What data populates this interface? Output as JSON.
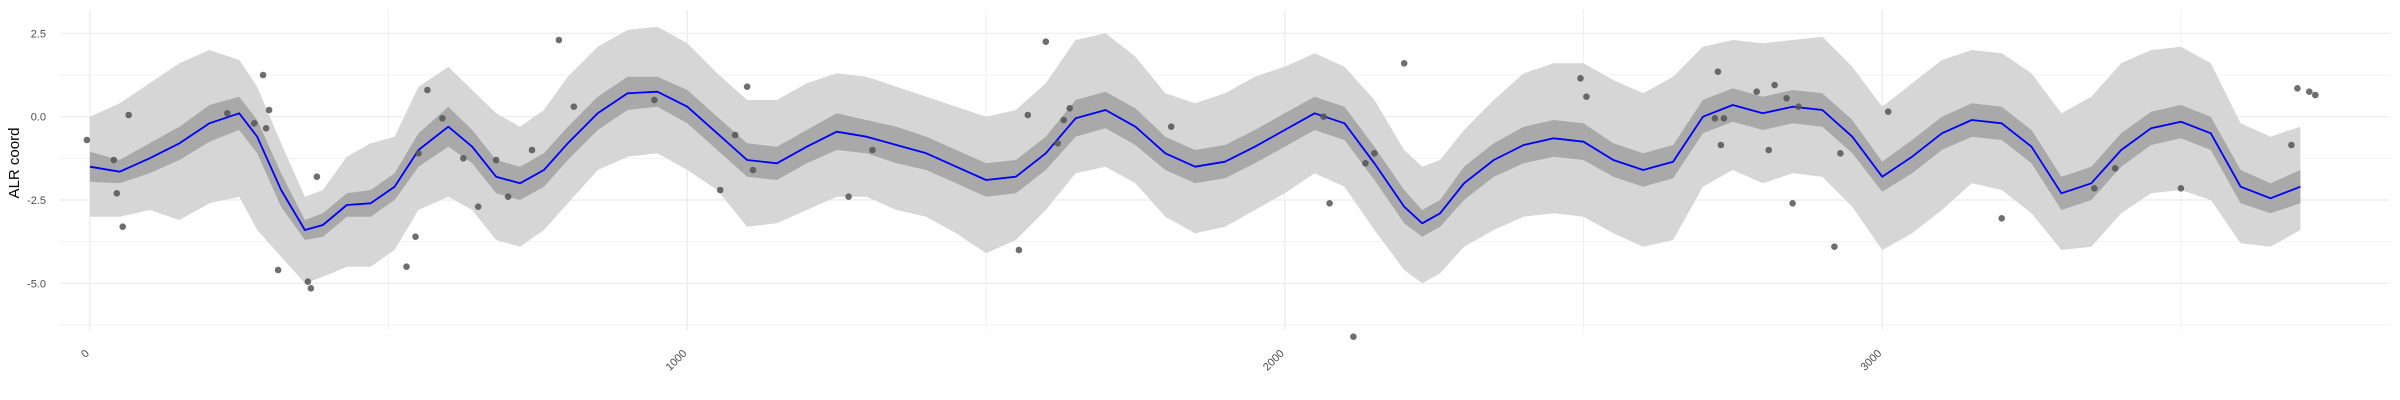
{
  "chart_data": {
    "type": "line",
    "xlabel": "",
    "ylabel": "ALR coord",
    "xlim": [
      -50,
      3850
    ],
    "ylim": [
      -6.4,
      3.2
    ],
    "x_ticks": [
      0,
      1000,
      2000,
      3000
    ],
    "y_ticks": [
      2.5,
      0.0,
      -2.5,
      -5.0
    ],
    "x_tick_labels": [
      "0",
      "1000",
      "2000",
      "3000"
    ],
    "y_tick_labels": [
      "2.5",
      "0.0",
      "-2.5",
      "-5.0"
    ],
    "grid": true,
    "legend": "none",
    "colors": {
      "line": "#0000ff",
      "inner_band": "#a9a9a9",
      "outer_band": "#d6d6d6",
      "points": "#555555",
      "grid": "#ebebeb",
      "tick_text": "#4d4d4d"
    },
    "fitted_line": {
      "x": [
        0,
        50,
        100,
        150,
        200,
        250,
        280,
        320,
        360,
        390,
        430,
        470,
        510,
        550,
        600,
        640,
        680,
        720,
        760,
        800,
        850,
        900,
        950,
        1000,
        1050,
        1100,
        1150,
        1200,
        1250,
        1300,
        1350,
        1400,
        1450,
        1500,
        1550,
        1600,
        1650,
        1700,
        1750,
        1800,
        1850,
        1900,
        1950,
        2000,
        2050,
        2100,
        2150,
        2200,
        2230,
        2260,
        2300,
        2350,
        2400,
        2450,
        2500,
        2550,
        2600,
        2650,
        2700,
        2750,
        2800,
        2850,
        2900,
        2950,
        3000,
        3050,
        3100,
        3150,
        3200,
        3250,
        3300,
        3350,
        3400,
        3450,
        3500,
        3550,
        3600,
        3650,
        3700
      ],
      "y": [
        -1.5,
        -1.65,
        -1.25,
        -0.8,
        -0.2,
        0.1,
        -0.6,
        -2.2,
        -3.4,
        -3.25,
        -2.65,
        -2.6,
        -2.1,
        -1.0,
        -0.3,
        -0.9,
        -1.8,
        -2.0,
        -1.6,
        -0.8,
        0.1,
        0.7,
        0.75,
        0.3,
        -0.5,
        -1.3,
        -1.4,
        -0.9,
        -0.45,
        -0.6,
        -0.85,
        -1.1,
        -1.5,
        -1.9,
        -1.8,
        -1.1,
        -0.05,
        0.2,
        -0.3,
        -1.1,
        -1.5,
        -1.35,
        -0.9,
        -0.4,
        0.1,
        -0.2,
        -1.4,
        -2.7,
        -3.2,
        -2.9,
        -2.0,
        -1.3,
        -0.85,
        -0.65,
        -0.75,
        -1.3,
        -1.6,
        -1.35,
        0.0,
        0.35,
        0.1,
        0.3,
        0.2,
        -0.6,
        -1.8,
        -1.2,
        -0.5,
        -0.1,
        -0.2,
        -0.9,
        -2.3,
        -2.0,
        -1.0,
        -0.35,
        -0.15,
        -0.5,
        -2.1,
        -2.45,
        -2.1
      ]
    },
    "inner_band": {
      "lower": [
        -1.95,
        -2.0,
        -1.7,
        -1.3,
        -0.75,
        -0.4,
        -1.1,
        -2.7,
        -3.7,
        -3.6,
        -3.0,
        -3.0,
        -2.5,
        -1.5,
        -0.9,
        -1.4,
        -2.3,
        -2.5,
        -2.1,
        -1.3,
        -0.4,
        0.2,
        0.3,
        -0.2,
        -1.0,
        -1.8,
        -1.9,
        -1.4,
        -1.0,
        -1.1,
        -1.4,
        -1.6,
        -2.0,
        -2.4,
        -2.3,
        -1.6,
        -0.6,
        -0.35,
        -0.85,
        -1.6,
        -2.0,
        -1.85,
        -1.4,
        -0.9,
        -0.4,
        -0.7,
        -1.9,
        -3.2,
        -3.6,
        -3.3,
        -2.5,
        -1.8,
        -1.4,
        -1.2,
        -1.3,
        -1.8,
        -2.1,
        -1.85,
        -0.5,
        -0.15,
        -0.4,
        -0.2,
        -0.3,
        -1.1,
        -2.25,
        -1.7,
        -1.0,
        -0.6,
        -0.7,
        -1.4,
        -2.8,
        -2.5,
        -1.5,
        -0.85,
        -0.65,
        -1.0,
        -2.6,
        -2.9,
        -2.6
      ],
      "upper": [
        -1.05,
        -1.3,
        -0.8,
        -0.3,
        0.35,
        0.6,
        -0.1,
        -1.7,
        -3.1,
        -2.9,
        -2.3,
        -2.2,
        -1.7,
        -0.5,
        0.3,
        -0.4,
        -1.3,
        -1.5,
        -1.1,
        -0.3,
        0.6,
        1.2,
        1.2,
        0.8,
        0.0,
        -0.8,
        -0.9,
        -0.4,
        0.1,
        -0.1,
        -0.3,
        -0.6,
        -1.0,
        -1.4,
        -1.3,
        -0.6,
        0.5,
        0.75,
        0.25,
        -0.6,
        -1.0,
        -0.85,
        -0.4,
        0.1,
        0.6,
        0.3,
        -0.9,
        -2.2,
        -2.8,
        -2.5,
        -1.5,
        -0.8,
        -0.3,
        -0.1,
        -0.2,
        -0.8,
        -1.1,
        -0.85,
        0.5,
        0.85,
        0.6,
        0.8,
        0.7,
        -0.1,
        -1.35,
        -0.7,
        0.0,
        0.4,
        0.3,
        -0.4,
        -1.8,
        -1.5,
        -0.5,
        0.15,
        0.35,
        0.0,
        -1.6,
        -2.0,
        -1.6
      ]
    },
    "outer_band": {
      "lower": [
        -3.0,
        -3.0,
        -2.8,
        -3.1,
        -2.6,
        -2.4,
        -3.4,
        -4.2,
        -5.0,
        -4.8,
        -4.5,
        -4.5,
        -4.0,
        -2.8,
        -2.4,
        -2.8,
        -3.7,
        -3.9,
        -3.4,
        -2.6,
        -1.6,
        -1.2,
        -1.1,
        -1.6,
        -2.2,
        -3.3,
        -3.2,
        -2.8,
        -2.4,
        -2.4,
        -2.8,
        -3.0,
        -3.5,
        -4.1,
        -3.7,
        -2.8,
        -1.7,
        -1.5,
        -2.0,
        -3.0,
        -3.5,
        -3.3,
        -2.8,
        -2.3,
        -1.7,
        -2.1,
        -3.4,
        -4.6,
        -5.0,
        -4.7,
        -3.9,
        -3.4,
        -3.0,
        -2.9,
        -3.0,
        -3.5,
        -3.9,
        -3.7,
        -2.1,
        -1.6,
        -2.0,
        -1.7,
        -1.8,
        -2.7,
        -4.0,
        -3.5,
        -2.8,
        -2.0,
        -2.2,
        -2.9,
        -4.0,
        -3.9,
        -2.9,
        -2.3,
        -2.2,
        -2.5,
        -3.8,
        -3.9,
        -3.4
      ],
      "upper": [
        0.0,
        0.4,
        1.0,
        1.6,
        2.0,
        1.7,
        0.9,
        -0.8,
        -2.4,
        -2.2,
        -1.2,
        -0.8,
        -0.6,
        0.9,
        1.5,
        0.8,
        0.1,
        -0.3,
        0.2,
        1.2,
        2.1,
        2.6,
        2.7,
        2.2,
        1.3,
        0.5,
        0.5,
        1.0,
        1.3,
        1.2,
        0.9,
        0.6,
        0.3,
        0.0,
        0.2,
        1.0,
        2.3,
        2.5,
        1.8,
        0.7,
        0.4,
        0.7,
        1.2,
        1.5,
        1.9,
        1.5,
        0.5,
        -1.0,
        -1.5,
        -1.3,
        -0.4,
        0.5,
        1.3,
        1.6,
        1.6,
        1.1,
        0.7,
        1.2,
        2.1,
        2.3,
        2.2,
        2.3,
        2.4,
        1.5,
        0.3,
        1.0,
        1.7,
        2.0,
        1.9,
        1.3,
        0.1,
        0.6,
        1.6,
        2.0,
        2.1,
        1.6,
        -0.2,
        -0.6,
        -0.3
      ]
    },
    "points": {
      "x": [
        -5,
        40,
        45,
        55,
        65,
        230,
        275,
        290,
        295,
        300,
        315,
        365,
        370,
        380,
        530,
        545,
        550,
        565,
        590,
        625,
        650,
        680,
        700,
        740,
        785,
        810,
        945,
        1055,
        1080,
        1100,
        1110,
        1270,
        1310,
        1555,
        1570,
        1600,
        1620,
        1630,
        1640,
        1810,
        2065,
        2075,
        2115,
        2135,
        2150,
        2200,
        2495,
        2505,
        2720,
        2725,
        2730,
        2735,
        2790,
        2810,
        2820,
        2840,
        2850,
        2860,
        2920,
        2930,
        3010,
        3200,
        3355,
        3390,
        3500,
        3685,
        3695,
        3715,
        3725
      ],
      "y": [
        -0.7,
        -1.3,
        -2.3,
        -3.3,
        0.05,
        0.1,
        -0.2,
        1.25,
        -0.35,
        0.2,
        -4.6,
        -4.95,
        -5.15,
        -1.8,
        -4.5,
        -3.6,
        -1.1,
        0.8,
        -0.05,
        -1.25,
        -2.7,
        -1.3,
        -2.4,
        -1.0,
        2.3,
        0.3,
        0.5,
        -2.2,
        -0.55,
        0.9,
        -1.6,
        -2.4,
        -1.0,
        -4.0,
        0.05,
        2.25,
        -0.8,
        -0.1,
        0.25,
        -0.3,
        0.0,
        -2.6,
        -6.6,
        -1.4,
        -1.1,
        1.6,
        1.15,
        0.6,
        -0.05,
        1.35,
        -0.85,
        -0.05,
        0.75,
        -1.0,
        0.95,
        0.55,
        -2.6,
        0.3,
        -3.9,
        -1.1,
        0.15,
        -3.05,
        -2.15,
        -1.55,
        -2.15,
        -0.85,
        0.85,
        0.75,
        0.65
      ]
    }
  }
}
